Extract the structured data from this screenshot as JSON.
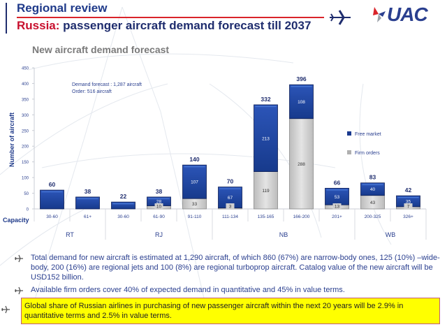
{
  "header": {
    "section": "Regional review",
    "title_accent": "Russia:",
    "title_rest": " passenger aircraft demand forecast till 2037",
    "logo_text": "UAC"
  },
  "colors": {
    "accent_red": "#c8102e",
    "brand_blue": "#1f2d6e",
    "free_market": "#1a3a8f",
    "firm_orders": "#d4d4d4",
    "highlight": "#ffff00"
  },
  "chart_data": {
    "type": "bar",
    "stacked": true,
    "title": "New aircraft demand forecast",
    "ylabel": "Number of aircraft",
    "xlabel": "Capacity",
    "ylim": [
      0,
      450
    ],
    "yticks": [
      0,
      50,
      100,
      150,
      200,
      250,
      300,
      350,
      400,
      450
    ],
    "annotation": [
      "Demand forecast : 1,287 aircraft",
      "Order: 516 aircraft"
    ],
    "legend": {
      "position": "right",
      "entries": [
        "Free market",
        "Firm orders"
      ]
    },
    "categories": [
      "30-60",
      "61+",
      "30-60",
      "61-90",
      "91-110",
      "111-134",
      "135-165",
      "166-200",
      "201+",
      "200-325",
      "326+"
    ],
    "groups": [
      {
        "label": "RT",
        "span": [
          0,
          1
        ]
      },
      {
        "label": "RJ",
        "span": [
          2,
          4
        ]
      },
      {
        "label": "NB",
        "span": [
          5,
          8
        ]
      },
      {
        "label": "WB",
        "span": [
          9,
          10
        ]
      }
    ],
    "series": [
      {
        "name": "Firm orders",
        "values": [
          0,
          0,
          0,
          10,
          33,
          3,
          119,
          288,
          13,
          43,
          7
        ]
      },
      {
        "name": "Free market",
        "values": [
          60,
          38,
          22,
          28,
          107,
          67,
          213,
          108,
          53,
          40,
          35
        ]
      }
    ],
    "totals": [
      60,
      38,
      22,
      38,
      140,
      70,
      332,
      396,
      66,
      83,
      42
    ],
    "show_segment_labels": [
      false,
      false,
      false,
      true,
      true,
      true,
      true,
      true,
      true,
      true,
      true
    ]
  },
  "bullets": [
    {
      "text": "Total demand for new aircraft is estimated at 1,290 aircraft, of which 860 (67%) are narrow-body ones, 125 (10%) –wide-body, 200 (16%) are regional jets and 100 (8%) are regional turboprop aircraft. Catalog value of the new aircraft will be USD152 billion.",
      "highlighted": false
    },
    {
      "text": "Available firm orders cover 40% of expected demand in quantitative and 45% in value terms.",
      "highlighted": false
    },
    {
      "text": "Global share of Russian airlines in purchasing of new passenger aircraft within the next 20 years will be 2.9% in quantitative terms and 2.5% in value terms.",
      "highlighted": true
    }
  ]
}
